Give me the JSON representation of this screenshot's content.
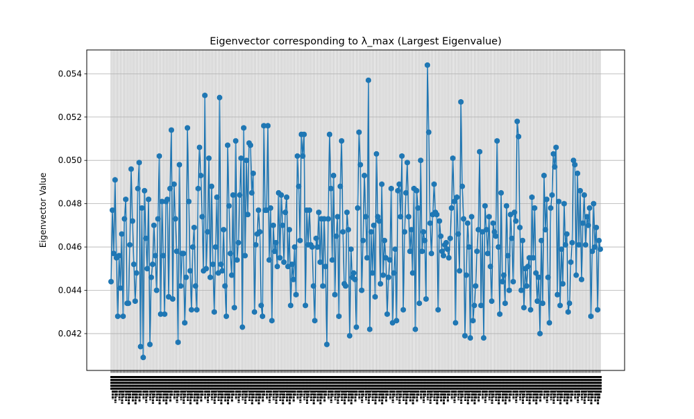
{
  "chart_data": {
    "type": "line",
    "title": "Eigenvector corresponding to λ_max (Largest Eigenvalue)",
    "xlabel": "",
    "ylabel": "Eigenvector Value",
    "ylim": [
      0.0403,
      0.0551
    ],
    "yticks": [
      0.042,
      0.044,
      0.046,
      0.048,
      0.05,
      0.052,
      0.054
    ],
    "ytick_labels": [
      "0.042",
      "0.044",
      "0.046",
      "0.048",
      "0.050",
      "0.052",
      "0.054"
    ],
    "grid": true,
    "legend": "none",
    "marker": "circle",
    "series_color": "#1f77b4",
    "grid_color": "#b0b0b0",
    "x_tick_rotation": 90,
    "x_ticks_note": "one category tick per data point; labels overlap and are illegible",
    "series": [
      {
        "values": [
          0.0444,
          0.0477,
          0.0457,
          0.0491,
          0.0455,
          0.0428,
          0.0456,
          0.0441,
          0.0466,
          0.0428,
          0.0473,
          0.0482,
          0.0434,
          0.0434,
          0.0461,
          0.0496,
          0.0472,
          0.0452,
          0.0435,
          0.0448,
          0.0487,
          0.0499,
          0.0414,
          0.0478,
          0.0409,
          0.0486,
          0.0464,
          0.045,
          0.0482,
          0.0415,
          0.0446,
          0.0452,
          0.047,
          0.0456,
          0.044,
          0.0473,
          0.0502,
          0.0429,
          0.0481,
          0.0456,
          0.0429,
          0.0481,
          0.0482,
          0.0437,
          0.0487,
          0.0514,
          0.0436,
          0.0489,
          0.0473,
          0.0458,
          0.0416,
          0.0498,
          0.0442,
          0.0457,
          0.0457,
          0.0425,
          0.0446,
          0.0515,
          0.0481,
          0.0449,
          0.0431,
          0.046,
          0.0469,
          0.0442,
          0.0431,
          0.0487,
          0.0506,
          0.0493,
          0.0474,
          0.0449,
          0.053,
          0.045,
          0.0467,
          0.0501,
          0.0446,
          0.0488,
          0.0452,
          0.043,
          0.046,
          0.0483,
          0.0448,
          0.0529,
          0.0452,
          0.0449,
          0.0468,
          0.0442,
          0.0428,
          0.0507,
          0.0479,
          0.0457,
          0.0447,
          0.0484,
          0.0432,
          0.0509,
          0.0454,
          0.0462,
          0.0484,
          0.0501,
          0.0423,
          0.0515,
          0.0456,
          0.05,
          0.0475,
          0.0508,
          0.0507,
          0.0485,
          0.0494,
          0.043,
          0.0461,
          0.0466,
          0.0477,
          0.0467,
          0.0433,
          0.0428,
          0.0516,
          0.0477,
          0.0477,
          0.0516,
          0.0454,
          0.0478,
          0.0426,
          0.047,
          0.0458,
          0.0462,
          0.0451,
          0.0485,
          0.0455,
          0.0484,
          0.047,
          0.0453,
          0.0476,
          0.0483,
          0.0451,
          0.0468,
          0.0433,
          0.0452,
          0.0445,
          0.046,
          0.0438,
          0.0502,
          0.0488,
          0.0463,
          0.0512,
          0.0502,
          0.0512,
          0.0433,
          0.0477,
          0.0461,
          0.0477,
          0.0461,
          0.046,
          0.0442,
          0.0426,
          0.0464,
          0.046,
          0.0476,
          0.0453,
          0.0473,
          0.0442,
          0.0473,
          0.0451,
          0.0415,
          0.0473,
          0.0512,
          0.0487,
          0.0454,
          0.0493,
          0.0438,
          0.0465,
          0.0474,
          0.0428,
          0.0488,
          0.0509,
          0.0467,
          0.0443,
          0.0442,
          0.0476,
          0.0468,
          0.0419,
          0.0459,
          0.0446,
          0.0448,
          0.0445,
          0.0423,
          0.0478,
          0.0513,
          0.0498,
          0.044,
          0.0463,
          0.0493,
          0.0474,
          0.0455,
          0.0537,
          0.0422,
          0.0467,
          0.0448,
          0.047,
          0.0437,
          0.0503,
          0.0474,
          0.0472,
          0.0443,
          0.0489,
          0.0447,
          0.0463,
          0.0455,
          0.0429,
          0.0446,
          0.0454,
          0.0487,
          0.0425,
          0.0448,
          0.0459,
          0.0426,
          0.0486,
          0.0489,
          0.0474,
          0.0502,
          0.0431,
          0.0467,
          0.0485,
          0.0499,
          0.0474,
          0.0458,
          0.0468,
          0.0448,
          0.0487,
          0.0422,
          0.0486,
          0.0478,
          0.0434,
          0.05,
          0.0458,
          0.0467,
          0.0463,
          0.0436,
          0.0544,
          0.0513,
          0.0471,
          0.0457,
          0.0475,
          0.0489,
          0.0476,
          0.0475,
          0.0431,
          0.0472,
          0.0465,
          0.0458,
          0.0456,
          0.0461,
          0.0462,
          0.0459,
          0.0455,
          0.0464,
          0.0478,
          0.0501,
          0.0481,
          0.0425,
          0.0483,
          0.0466,
          0.0449,
          0.0527,
          0.0488,
          0.0473,
          0.0419,
          0.0447,
          0.0471,
          0.046,
          0.0418,
          0.0474,
          0.0426,
          0.0433,
          0.0442,
          0.0458,
          0.0468,
          0.0504,
          0.0433,
          0.0467,
          0.0418,
          0.0479,
          0.0468,
          0.0457,
          0.0474,
          0.0451,
          0.0435,
          0.0471,
          0.0467,
          0.0465,
          0.0509,
          0.046,
          0.0429,
          0.0485,
          0.0444,
          0.0447,
          0.0434,
          0.0479,
          0.0456,
          0.044,
          0.0475,
          0.0464,
          0.0444,
          0.0476,
          0.0472,
          0.0518,
          0.0511,
          0.0469,
          0.044,
          0.0463,
          0.0432,
          0.045,
          0.0442,
          0.0451,
          0.0455,
          0.0431,
          0.0483,
          0.0455,
          0.0478,
          0.0448,
          0.0435,
          0.0446,
          0.042,
          0.0463,
          0.0434,
          0.0493,
          0.0468,
          0.0482,
          0.0446,
          0.0425,
          0.0478,
          0.0484,
          0.0503,
          0.0497,
          0.0506,
          0.0438,
          0.0481,
          0.0433,
          0.0459,
          0.0443,
          0.048,
          0.0461,
          0.0466,
          0.043,
          0.0434,
          0.0453,
          0.0462,
          0.05,
          0.0498,
          0.0447,
          0.0494,
          0.0461,
          0.0486,
          0.0445,
          0.0471,
          0.0484,
          0.0461,
          0.0474,
          0.047,
          0.0478,
          0.0428,
          0.0458,
          0.048,
          0.046,
          0.0469,
          0.0431,
          0.0463,
          0.0459
        ]
      }
    ]
  }
}
